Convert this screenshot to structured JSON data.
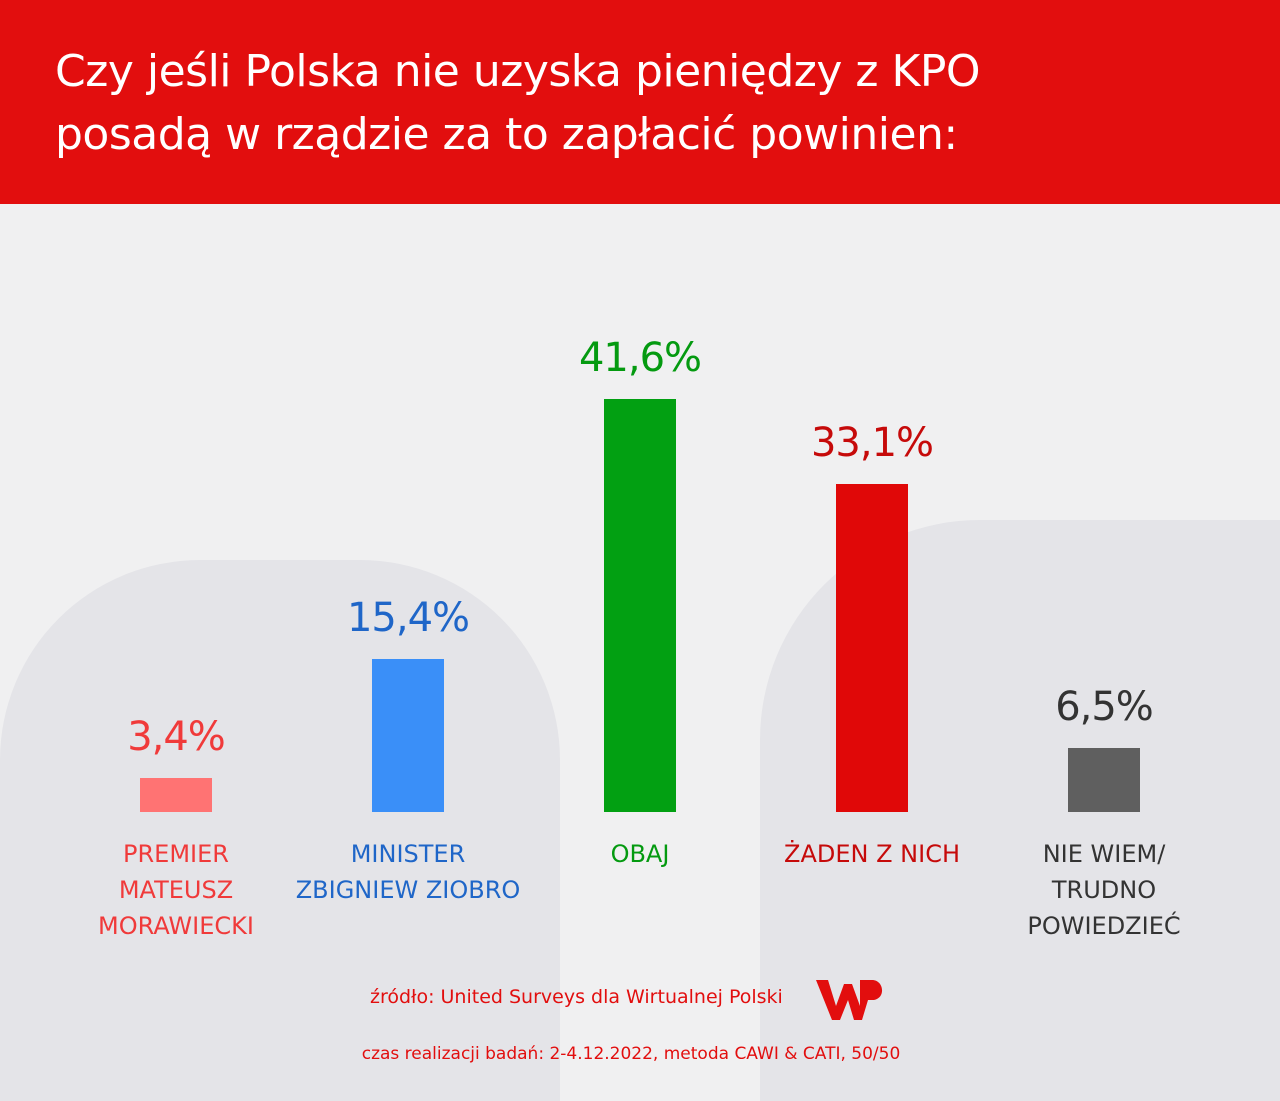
{
  "header": {
    "title_line1": "Czy jeśli Polska nie uzyska pieniędzy z KPO",
    "title_line2": "posadą w rządzie za to zapłacić powinien:"
  },
  "chart_data": {
    "type": "bar",
    "title": "Czy jeśli Polska nie uzyska pieniędzy z KPO posadą w rządzie za to zapłacić powinien:",
    "categories": [
      "PREMIER\nMATEUSZ\nMORAWIECKI",
      "MINISTER\nZBIGNIEW ZIOBRO",
      "OBAJ",
      "ŻADEN Z NICH",
      "NIE WIEM/\nTRUDNO\nPOWIEDZIEĆ"
    ],
    "values": [
      3.4,
      15.4,
      41.6,
      33.1,
      6.5
    ],
    "value_labels": [
      "3,4%",
      "15,4%",
      "41,6%",
      "33,1%",
      "6,5%"
    ],
    "bar_colors": [
      "#ff7373",
      "#3a8ff8",
      "#02a012",
      "#e00808",
      "#5f5f5f"
    ],
    "label_colors": [
      "#f03a3a",
      "#1f66c8",
      "#049a10",
      "#c60a0a",
      "#333333"
    ],
    "xlabel": "",
    "ylabel": "",
    "ylim": [
      0,
      45
    ],
    "grid": false,
    "legend": "none"
  },
  "footer": {
    "source": "źródło: United Surveys dla Wirtualnej Polski",
    "logo_text": "WP",
    "meta": "czas realizacji badań: 2-4.12.2022, metoda CAWI & CATI, 50/50"
  },
  "colors": {
    "brand": "#e20e0e"
  }
}
